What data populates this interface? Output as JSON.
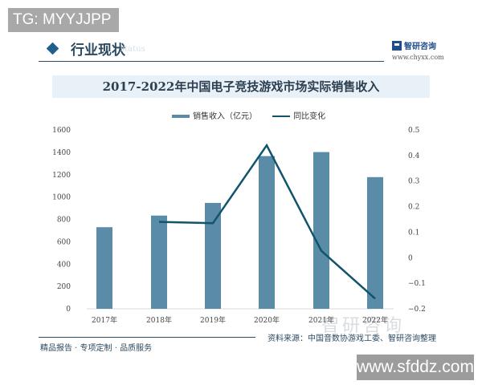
{
  "overlay_top_left": "TG: MYYJJPP",
  "header": {
    "section_title": "行业现状",
    "section_subtitle": "status",
    "brand_name": "智研咨询",
    "brand_url": "www.chyxx.com"
  },
  "legend": {
    "bar_label": "销售收入（亿元）",
    "line_label": "同比变化"
  },
  "footer": {
    "tagline": "精品报告 · 专项定制 · 品质服务",
    "source": "资料来源：中国音数协游戏工委、智研咨询整理",
    "watermark": "智研咨询"
  },
  "overlay_bottom_right": "www.sfddz.com",
  "colors": {
    "bar": "#5a8ca8",
    "line": "#11546b",
    "title_band": "#e8f1f7",
    "accent": "#1f5f8b"
  },
  "chart_data": {
    "type": "bar",
    "title": "2017-2022年中国电子竞技游戏市场实际销售收入",
    "categories": [
      "2017年",
      "2018年",
      "2019年",
      "2020年",
      "2021年",
      "2022年"
    ],
    "series": [
      {
        "name": "销售收入（亿元）",
        "type": "bar",
        "axis": "left",
        "values": [
          730,
          834,
          947,
          1366,
          1402,
          1178
        ]
      },
      {
        "name": "同比变化",
        "type": "line",
        "axis": "right",
        "values": [
          null,
          0.14,
          0.135,
          0.44,
          0.027,
          -0.16
        ]
      }
    ],
    "y_left": {
      "min": 0,
      "max": 1600,
      "ticks": [
        0,
        200,
        400,
        600,
        800,
        1000,
        1200,
        1400,
        1600
      ]
    },
    "y_right": {
      "min": -0.2,
      "max": 0.5,
      "ticks": [
        "0.5",
        "0.4",
        "0.3",
        "0.2",
        "0.1",
        "0",
        "-0.1",
        "-0.2"
      ]
    },
    "xlabel": "",
    "ylabel": "",
    "grid": false,
    "legend_position": "top"
  }
}
